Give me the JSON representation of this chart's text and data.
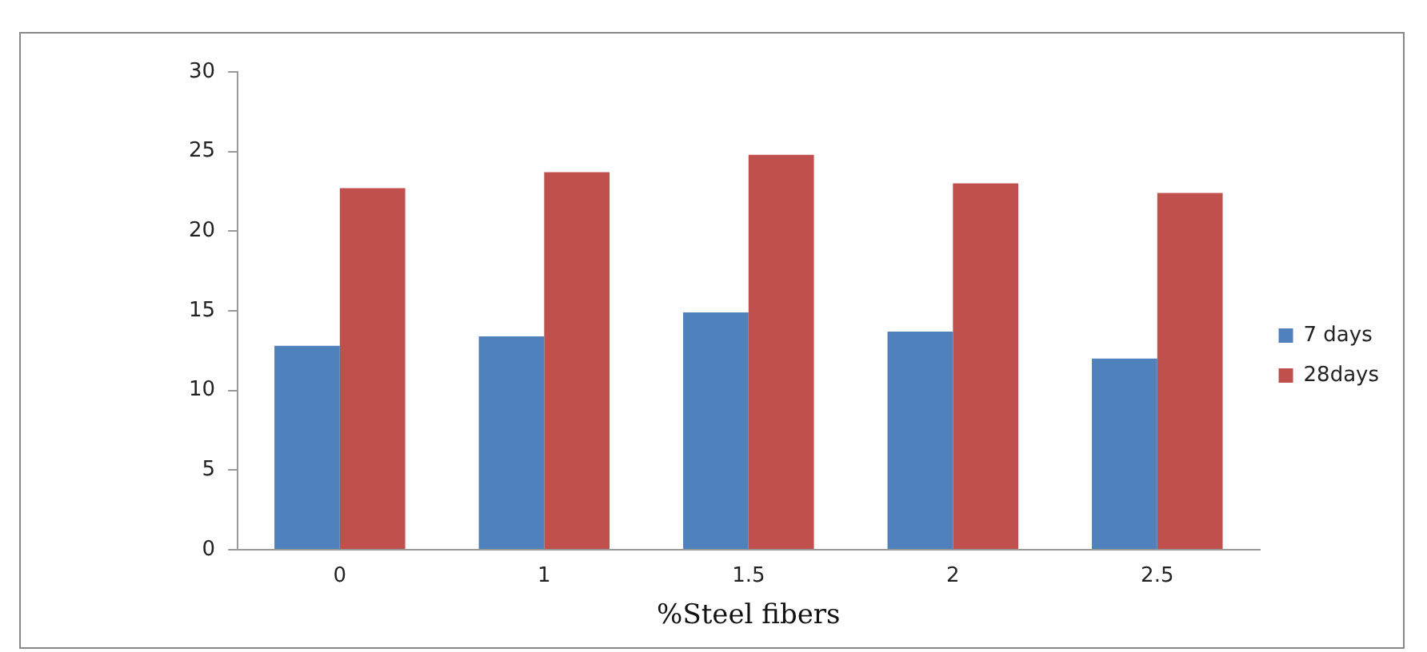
{
  "chart_data": {
    "type": "bar",
    "xlabel": "%Steel fibers",
    "categories": [
      "0",
      "1",
      "1.5",
      "2",
      "2.5"
    ],
    "series": [
      {
        "name": "7 days",
        "color": "#4f81bd",
        "values": [
          12.8,
          13.4,
          14.9,
          13.7,
          12.0
        ]
      },
      {
        "name": "28days",
        "color": "#c0504d",
        "values": [
          22.7,
          23.7,
          24.8,
          23.0,
          22.4
        ]
      }
    ],
    "ylim": [
      0,
      30
    ],
    "yticks": [
      0,
      5,
      10,
      15,
      20,
      25,
      30
    ],
    "grid": false,
    "legend": "right"
  }
}
